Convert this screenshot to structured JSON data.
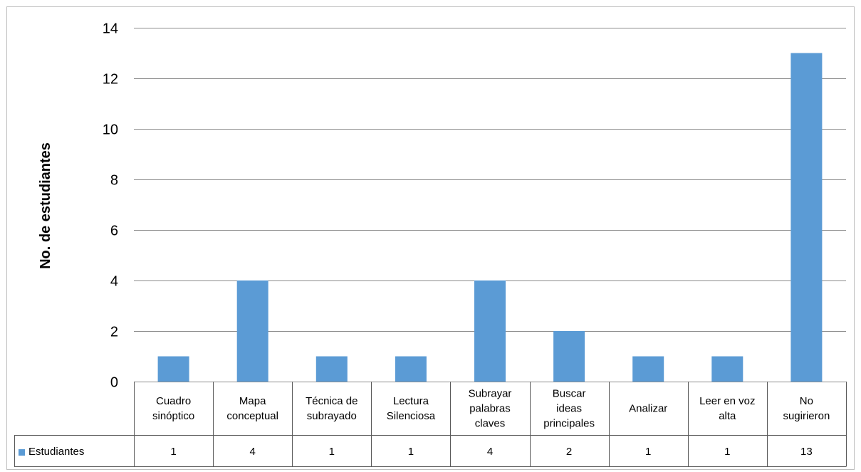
{
  "chart_data": {
    "type": "bar",
    "title": "",
    "xlabel": "",
    "ylabel": "No. de estudiantes",
    "ylim": [
      0,
      14
    ],
    "yticks": [
      "0",
      "2",
      "4",
      "6",
      "8",
      "10",
      "12",
      "14"
    ],
    "grid": true,
    "legend_placement": "data-table",
    "data_table": true,
    "categories": [
      [
        "Cuadro",
        "sinóptico"
      ],
      [
        "Mapa",
        "conceptual"
      ],
      [
        "Técnica de",
        "subrayado"
      ],
      [
        "Lectura",
        "Silenciosa"
      ],
      [
        "Subrayar",
        "palabras",
        "claves"
      ],
      [
        "Buscar",
        "ideas",
        "principales"
      ],
      [
        "Analizar"
      ],
      [
        "Leer en voz",
        "alta"
      ],
      [
        "No",
        "sugirieron"
      ]
    ],
    "series": [
      {
        "name": "Estudiantes",
        "color": "#5b9bd5",
        "values": [
          1,
          4,
          1,
          1,
          4,
          2,
          1,
          1,
          13
        ]
      }
    ]
  }
}
